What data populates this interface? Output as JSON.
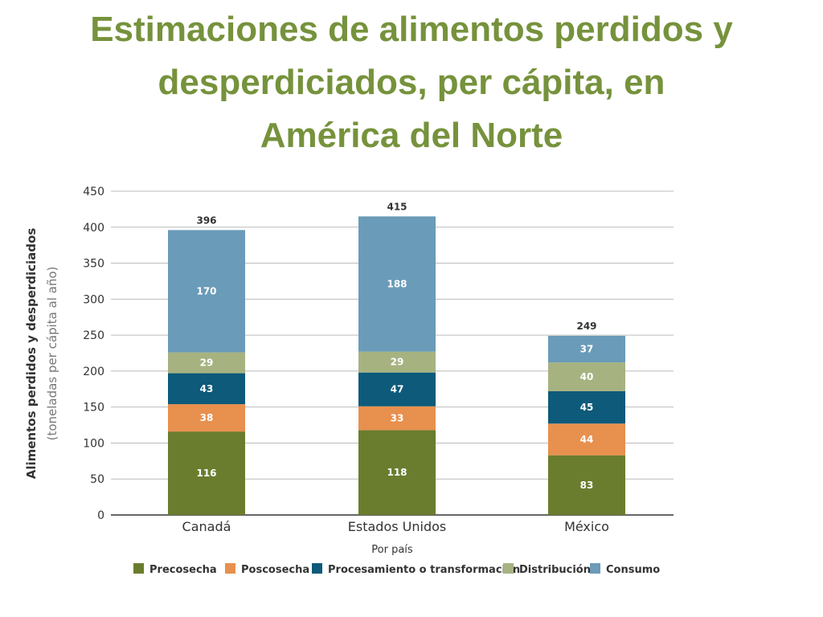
{
  "page": {
    "title_lines": [
      "Estimaciones de alimentos perdidos y",
      "desperdiciados, per cápita, en",
      "América del Norte"
    ]
  },
  "chart_data": {
    "type": "bar",
    "stacked": true,
    "categories": [
      "Canadá",
      "Estados Unidos",
      "México"
    ],
    "totals": [
      396,
      415,
      249
    ],
    "series": [
      {
        "name": "Precosecha",
        "values": [
          116,
          118,
          83
        ],
        "color": "#6a7d2e",
        "label_color": "#ffffff"
      },
      {
        "name": "Poscosecha",
        "values": [
          38,
          33,
          44
        ],
        "color": "#e8904e",
        "label_color": "#ffffff"
      },
      {
        "name": "Procesamiento o transformación",
        "values": [
          43,
          47,
          45
        ],
        "color": "#0d5a7a",
        "label_color": "#ffffff"
      },
      {
        "name": "Distribución",
        "values": [
          29,
          29,
          40
        ],
        "color": "#a7b281",
        "label_color": "#ffffff"
      },
      {
        "name": "Consumo",
        "values": [
          170,
          188,
          37
        ],
        "color": "#6a9bb8",
        "label_color": "#ffffff"
      }
    ],
    "xlabel": "Por país",
    "ylabel": "Alimentos perdidos y desperdiciados",
    "ylabel_sub": "(toneladas per cápita al año)",
    "ylim": [
      0,
      450
    ],
    "yticks": [
      0,
      50,
      100,
      150,
      200,
      250,
      300,
      350,
      400,
      450
    ],
    "grid": true,
    "legend_position": "bottom"
  }
}
